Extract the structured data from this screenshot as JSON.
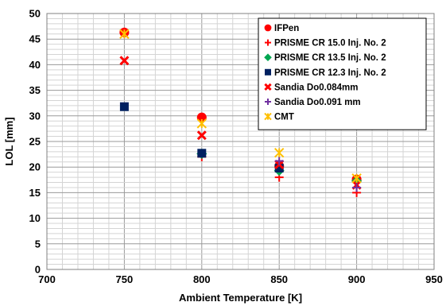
{
  "chart_data": {
    "type": "scatter",
    "title": "",
    "xlabel": "Ambient Temperature [K]",
    "ylabel": "LOL [mm]",
    "xlim": [
      700,
      950
    ],
    "ylim": [
      0,
      50
    ],
    "xticks": [
      700,
      750,
      800,
      850,
      900,
      950
    ],
    "yticks": [
      0,
      5,
      10,
      15,
      20,
      25,
      30,
      35,
      40,
      45,
      50
    ],
    "grid": true,
    "legend_position": "top-right",
    "series": [
      {
        "name": "IFPen",
        "marker": "circle",
        "color": "#ff0000",
        "points": [
          [
            750,
            46.3
          ],
          [
            800,
            29.7
          ],
          [
            850,
            20.2
          ],
          [
            900,
            17.6
          ]
        ]
      },
      {
        "name": "PRISME CR 15.0 Inj. No. 2",
        "marker": "plus",
        "color": "#ff0000",
        "points": [
          [
            800,
            22.0
          ],
          [
            850,
            18.0
          ],
          [
            900,
            15.0
          ]
        ]
      },
      {
        "name": "PRISME CR 13.5 Inj. No. 2",
        "marker": "diamond",
        "color": "#00a651",
        "points": [
          [
            800,
            22.6
          ],
          [
            850,
            19.3
          ],
          [
            900,
            17.3
          ]
        ]
      },
      {
        "name": "PRISME CR 12.3 Inj. No. 2",
        "marker": "square",
        "color": "#002060",
        "points": [
          [
            750,
            31.8
          ],
          [
            800,
            22.7
          ],
          [
            850,
            19.8
          ]
        ]
      },
      {
        "name": "Sandia Do0.084mm",
        "marker": "x",
        "color": "#ff0000",
        "points": [
          [
            750,
            40.8
          ],
          [
            800,
            26.2
          ],
          [
            850,
            20.5
          ],
          [
            900,
            16.5
          ]
        ]
      },
      {
        "name": "Sandia Do0.091 mm",
        "marker": "plus",
        "color": "#7030a0",
        "points": [
          [
            850,
            21.2
          ],
          [
            900,
            16.0
          ]
        ]
      },
      {
        "name": "CMT",
        "marker": "asterisk",
        "color": "#ffc000",
        "points": [
          [
            750,
            46.0
          ],
          [
            800,
            28.5
          ],
          [
            850,
            22.8
          ],
          [
            900,
            17.8
          ]
        ]
      }
    ]
  }
}
